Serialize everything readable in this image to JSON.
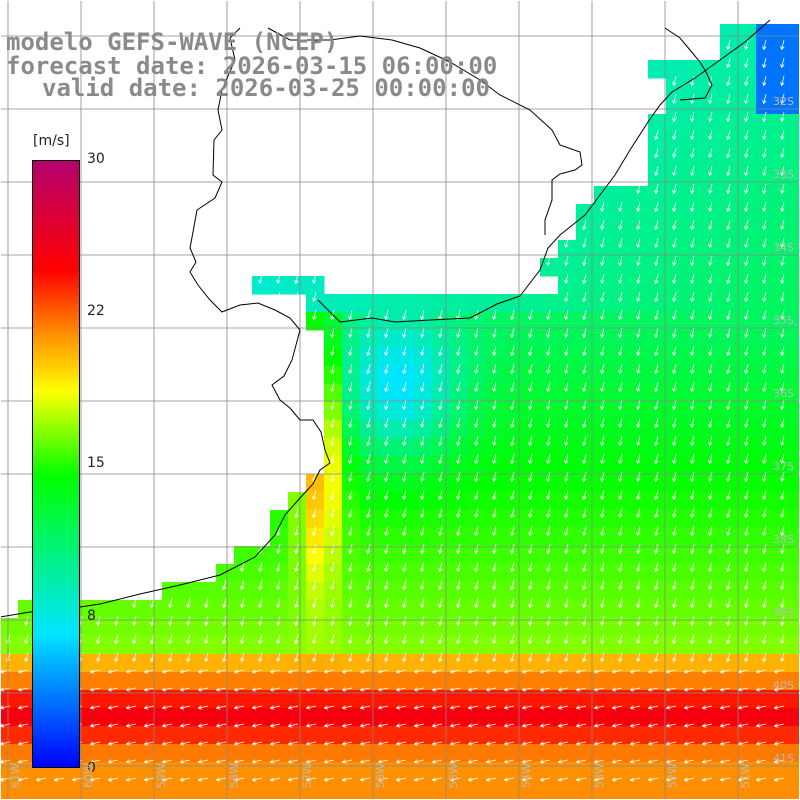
{
  "title": {
    "line1": "modelo GEFS-WAVE (NCEP)",
    "line2": "forecast date: 2026-03-15 06:00:00",
    "line3": "valid date: 2026-03-25 00:00:00"
  },
  "colorbar": {
    "units": "[m/s]",
    "ticks": [
      "30",
      "22",
      "15",
      "8",
      "0"
    ],
    "tick_values": [
      30,
      22,
      15,
      8,
      0
    ],
    "colors": [
      "#0000ff",
      "#00e5ff",
      "#00ff00",
      "#ffff00",
      "#ff8800",
      "#ff0000",
      "#b4006f"
    ]
  },
  "map": {
    "lat_labels": [
      "32S",
      "33S",
      "34S",
      "35S",
      "36S",
      "37S",
      "38S",
      "39S",
      "40S",
      "41S"
    ],
    "lon_labels": [
      "61W",
      "60W",
      "59W",
      "58W",
      "57W",
      "56W",
      "55W",
      "54W",
      "53W",
      "52W",
      "51W"
    ],
    "lat_range": [
      -41.5,
      -31.0
    ],
    "lon_range": [
      -61.0,
      -50.2
    ],
    "variable": "wind speed",
    "colors": {
      "grid": "#888888",
      "coast": "#000000",
      "arrow": "#ffffff",
      "land": "#ffffff"
    }
  }
}
